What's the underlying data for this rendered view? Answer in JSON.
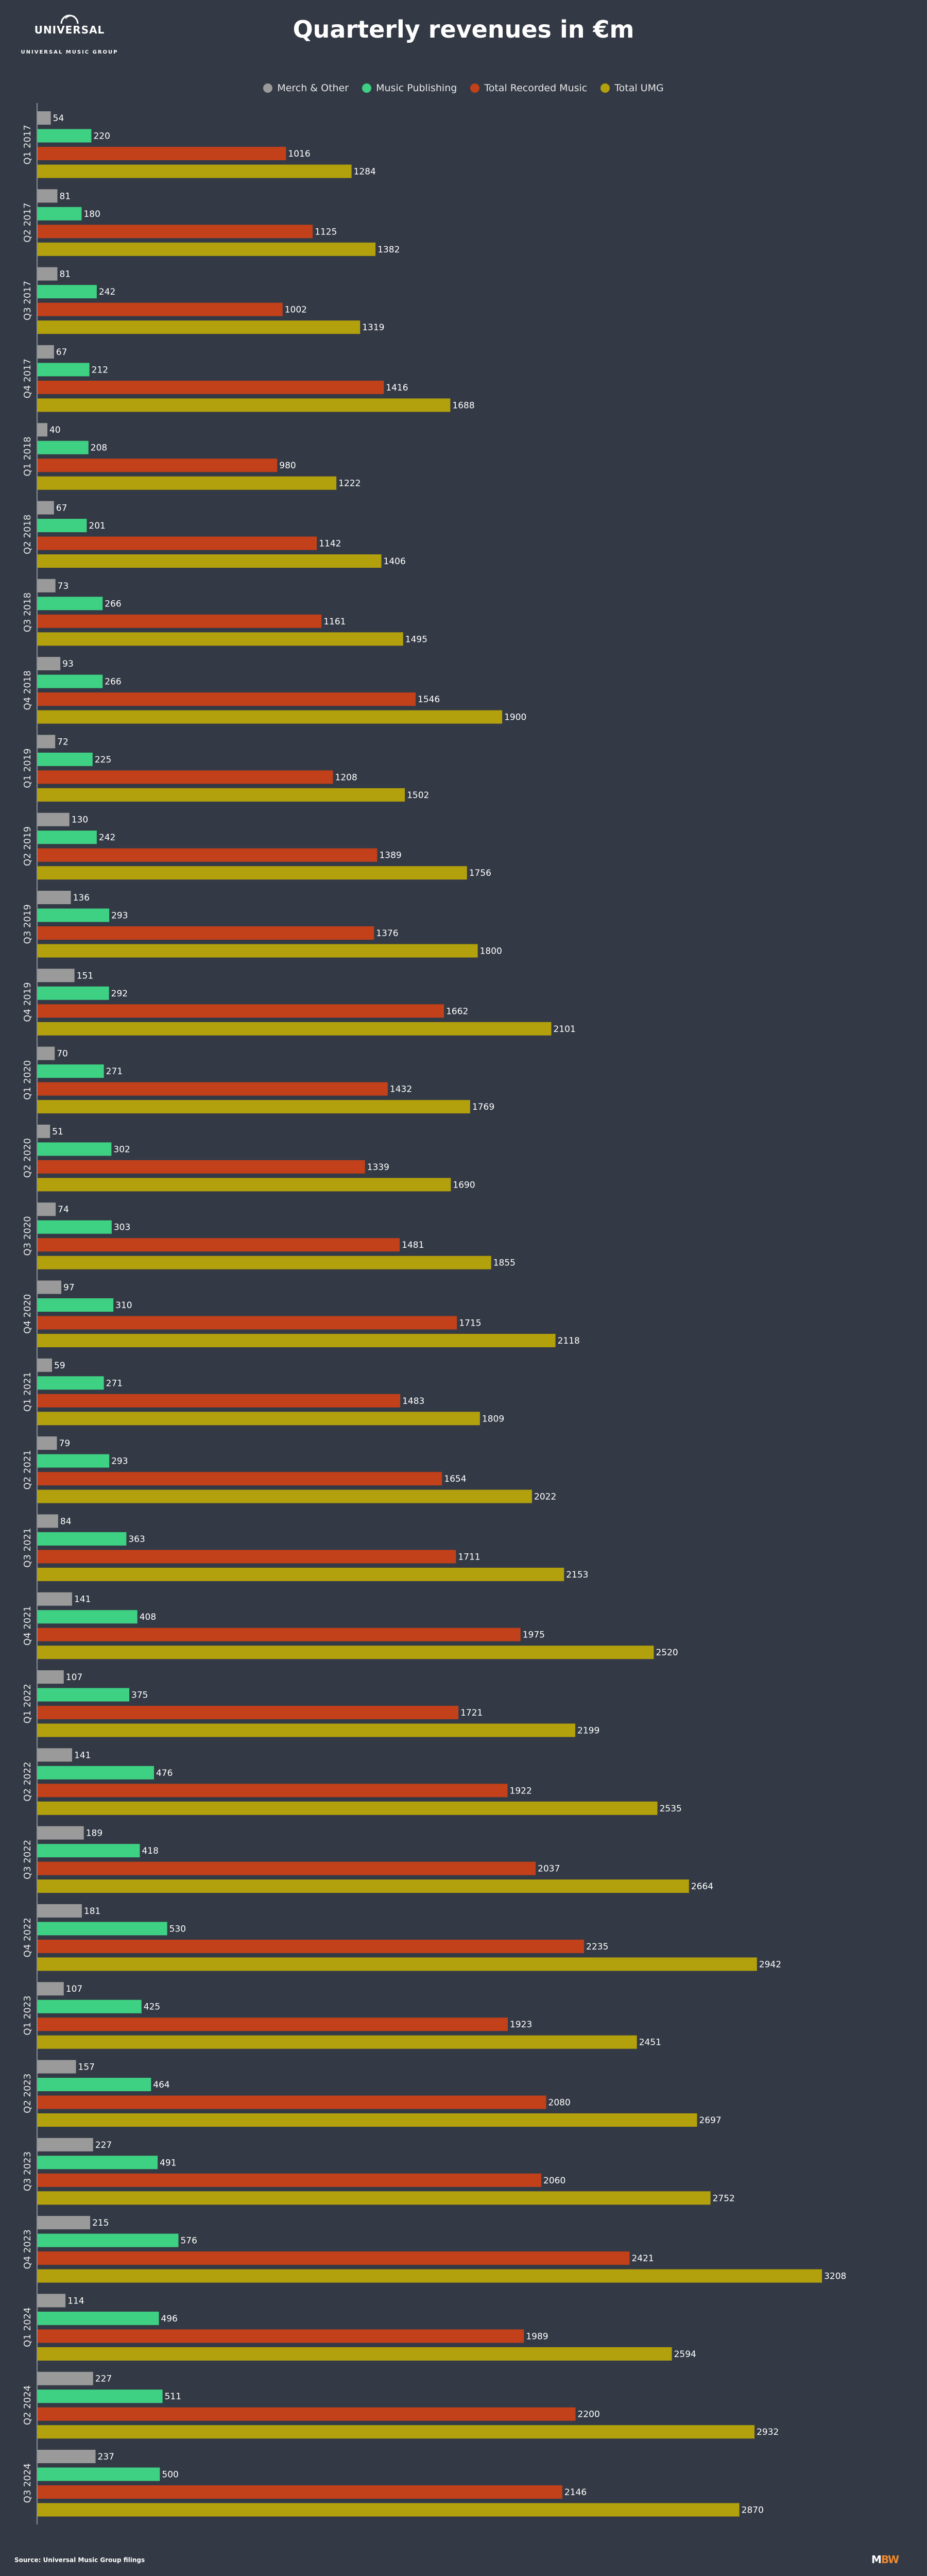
{
  "header": {
    "logo_line1": "UNIVERSAL",
    "logo_line2": "UNIVERSAL MUSIC GROUP",
    "title": "Quarterly revenues in €m"
  },
  "footer": {
    "source": "Source: Universal Music Group filings",
    "brand_m": "M",
    "brand_bw": "BW"
  },
  "colors": {
    "background": "#343a45",
    "merch": "#9a9a9a",
    "publishing": "#3ed183",
    "recorded": "#c2401a",
    "total": "#b3a00d"
  },
  "chart_data": {
    "type": "bar",
    "orientation": "horizontal",
    "title": "Quarterly revenues in €m",
    "legend_position": "top-center",
    "grid": false,
    "categories": [
      "Q1 2017",
      "Q2 2017",
      "Q3 2017",
      "Q4 2017",
      "Q1 2018",
      "Q2 2018",
      "Q3 2018",
      "Q4 2018",
      "Q1 2019",
      "Q2 2019",
      "Q3 2019",
      "Q4 2019",
      "Q1 2020",
      "Q2 2020",
      "Q3 2020",
      "Q4 2020",
      "Q1 2021",
      "Q2 2021",
      "Q3 2021",
      "Q4 2021",
      "Q1 2022",
      "Q2 2022",
      "Q3 2022",
      "Q4 2022",
      "Q1 2023",
      "Q2 2023",
      "Q3 2023",
      "Q4 2023",
      "Q1 2024",
      "Q2 2024",
      "Q3 2024"
    ],
    "series": [
      {
        "name": "Merch & Other",
        "color": "#9a9a9a",
        "values": [
          54,
          81,
          81,
          67,
          40,
          67,
          73,
          93,
          72,
          130,
          136,
          151,
          70,
          51,
          74,
          97,
          59,
          79,
          84,
          141,
          107,
          141,
          189,
          181,
          107,
          157,
          227,
          215,
          114,
          227,
          237
        ]
      },
      {
        "name": "Music Publishing",
        "color": "#3ed183",
        "values": [
          220,
          180,
          242,
          212,
          208,
          201,
          266,
          266,
          225,
          242,
          293,
          292,
          271,
          302,
          303,
          310,
          271,
          293,
          363,
          408,
          375,
          476,
          418,
          530,
          425,
          464,
          491,
          576,
          496,
          511,
          500
        ]
      },
      {
        "name": "Total Recorded Music",
        "color": "#c2401a",
        "values": [
          1016,
          1125,
          1002,
          1416,
          980,
          1142,
          1161,
          1546,
          1208,
          1389,
          1376,
          1662,
          1432,
          1339,
          1481,
          1715,
          1483,
          1654,
          1711,
          1975,
          1721,
          1922,
          2037,
          2235,
          1923,
          2080,
          2060,
          2421,
          1989,
          2200,
          2146
        ]
      },
      {
        "name": "Total UMG",
        "color": "#b3a00d",
        "values": [
          1284,
          1382,
          1319,
          1688,
          1222,
          1406,
          1495,
          1900,
          1502,
          1756,
          1800,
          2101,
          1769,
          1690,
          1855,
          2118,
          1809,
          2022,
          2153,
          2520,
          2199,
          2535,
          2664,
          2942,
          2451,
          2697,
          2752,
          3208,
          2594,
          2932,
          2870
        ]
      }
    ],
    "xlim": [
      0,
      3450
    ]
  }
}
